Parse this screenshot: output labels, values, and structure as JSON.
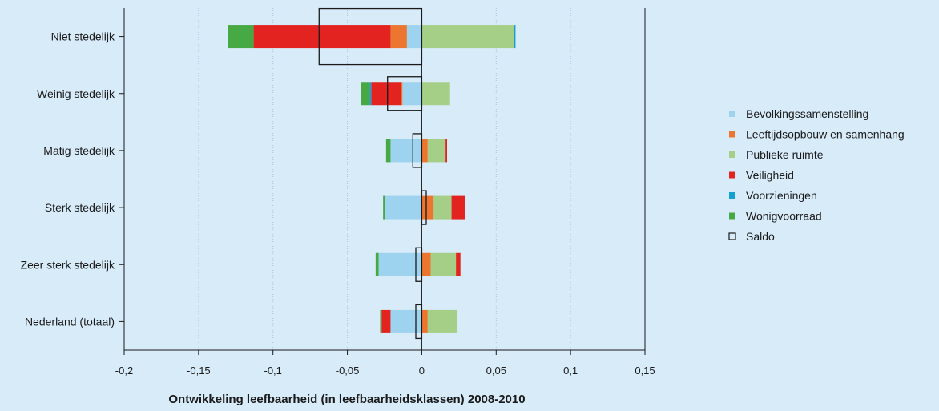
{
  "chart_data": {
    "type": "bar",
    "orientation": "horizontal",
    "stacked": "diverging",
    "xlabel": "Ontwikkeling leefbaarheid (in leefbaarheidsklassen) 2008-2010",
    "ylabel": "",
    "xlim": [
      -0.2,
      0.15
    ],
    "xticks": [
      -0.2,
      -0.15,
      -0.1,
      -0.05,
      0,
      0.05,
      0.1,
      0.15
    ],
    "xtick_labels": [
      "-0,2",
      "-0,15",
      "-0,1",
      "-0,05",
      "0",
      "0,05",
      "0,1",
      "0,15"
    ],
    "grid": "vertical dotted",
    "legend_position": "right",
    "categories": [
      "Niet stedelijk",
      "Weinig stedelijk",
      "Matig stedelijk",
      "Sterk stedelijk",
      "Zeer sterk stedelijk",
      "Nederland (totaal)"
    ],
    "series": [
      {
        "name": "Bevolkingssamenstelling",
        "color": "#9dd3ef",
        "values": [
          -0.01,
          -0.013,
          -0.021,
          -0.025,
          -0.029,
          -0.021
        ]
      },
      {
        "name": "Leeftijdsopbouw en samenhang",
        "color": "#ec7530",
        "values": [
          -0.011,
          -0.001,
          0.004,
          0.008,
          0.006,
          0.004
        ]
      },
      {
        "name": "Publieke ruimte",
        "color": "#a5cf86",
        "values": [
          0.062,
          0.019,
          0.012,
          0.012,
          0.017,
          0.02
        ]
      },
      {
        "name": "Veiligheid",
        "color": "#e32320",
        "values": [
          -0.092,
          -0.02,
          0.001,
          0.009,
          0.003,
          -0.006
        ]
      },
      {
        "name": "Voorzieningen",
        "color": "#13a1d1",
        "values": [
          0.001,
          -0.001,
          0.0,
          0.0,
          0.0,
          0.0
        ]
      },
      {
        "name": "Wonigvoorraad",
        "color": "#46a944",
        "values": [
          -0.017,
          -0.006,
          -0.003,
          -0.001,
          -0.002,
          -0.001
        ]
      }
    ],
    "saldo": {
      "name": "Saldo",
      "values": [
        -0.069,
        -0.023,
        -0.006,
        0.003,
        -0.004,
        -0.004
      ]
    }
  }
}
